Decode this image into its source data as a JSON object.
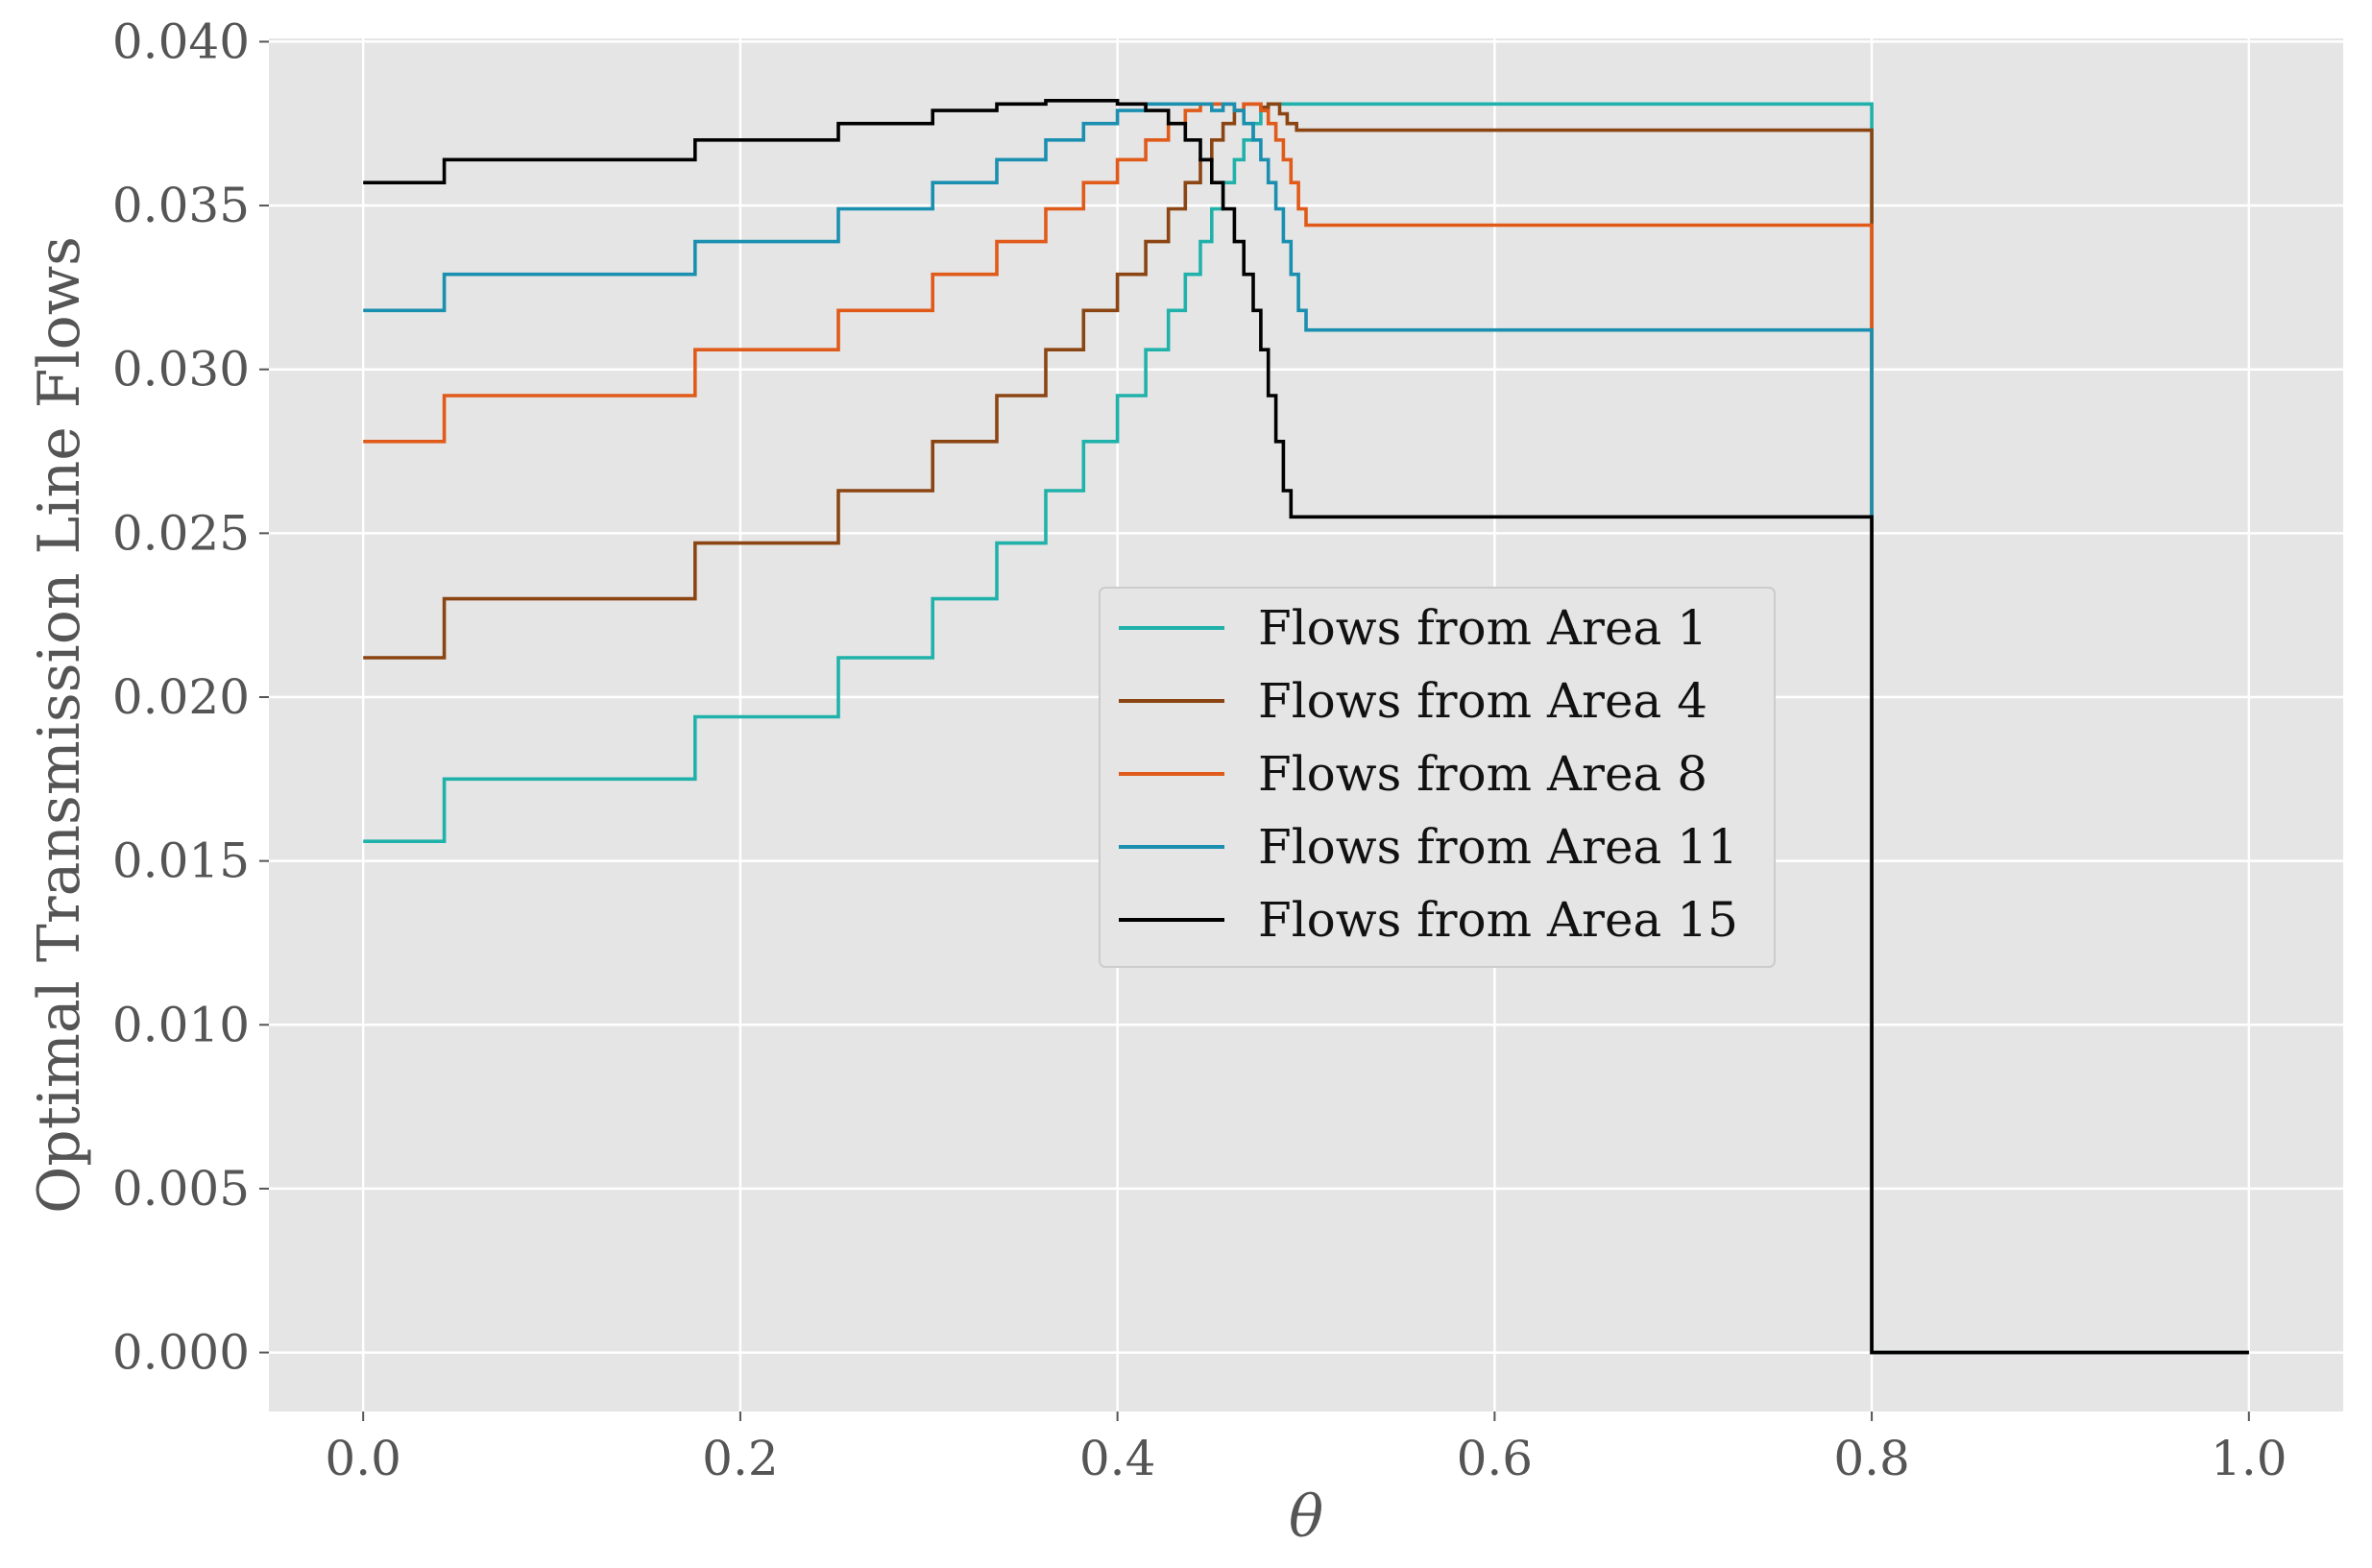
{
  "chart_data": {
    "type": "line",
    "step": true,
    "title": "",
    "xlabel": "θ",
    "ylabel": "Optimal Transmission Line Flows",
    "xlim": [
      -0.05,
      1.05
    ],
    "ylim": [
      -0.0018,
      0.0401
    ],
    "xticks": [
      0.0,
      0.2,
      0.4,
      0.6,
      0.8,
      1.0
    ],
    "xtick_labels": [
      "0.0",
      "0.2",
      "0.4",
      "0.6",
      "0.8",
      "1.0"
    ],
    "yticks": [
      0.0,
      0.005,
      0.01,
      0.015,
      0.02,
      0.025,
      0.03,
      0.035,
      0.04
    ],
    "ytick_labels": [
      "0.000",
      "0.005",
      "0.010",
      "0.015",
      "0.020",
      "0.025",
      "0.030",
      "0.035",
      "0.040"
    ],
    "grid": true,
    "legend_position": "center",
    "series": [
      {
        "name": "Flows from Area 1",
        "color": "#20b2aa",
        "points": [
          [
            0.0,
            0.0156
          ],
          [
            0.043,
            0.0156
          ],
          [
            0.043,
            0.0175
          ],
          [
            0.176,
            0.0175
          ],
          [
            0.176,
            0.0194
          ],
          [
            0.252,
            0.0194
          ],
          [
            0.252,
            0.0212
          ],
          [
            0.302,
            0.0212
          ],
          [
            0.302,
            0.023
          ],
          [
            0.336,
            0.023
          ],
          [
            0.336,
            0.0247
          ],
          [
            0.362,
            0.0247
          ],
          [
            0.362,
            0.0263
          ],
          [
            0.382,
            0.0263
          ],
          [
            0.382,
            0.0278
          ],
          [
            0.4,
            0.0278
          ],
          [
            0.4,
            0.0292
          ],
          [
            0.415,
            0.0292
          ],
          [
            0.415,
            0.0306
          ],
          [
            0.427,
            0.0306
          ],
          [
            0.427,
            0.0318
          ],
          [
            0.436,
            0.0318
          ],
          [
            0.436,
            0.0329
          ],
          [
            0.444,
            0.0329
          ],
          [
            0.444,
            0.0339
          ],
          [
            0.45,
            0.0339
          ],
          [
            0.45,
            0.0349
          ],
          [
            0.456,
            0.0349
          ],
          [
            0.456,
            0.0357
          ],
          [
            0.462,
            0.0357
          ],
          [
            0.462,
            0.0364
          ],
          [
            0.467,
            0.0364
          ],
          [
            0.467,
            0.037
          ],
          [
            0.472,
            0.037
          ],
          [
            0.472,
            0.0375
          ],
          [
            0.476,
            0.0375
          ],
          [
            0.476,
            0.0379
          ],
          [
            0.48,
            0.0379
          ],
          [
            0.48,
            0.0381
          ],
          [
            0.8,
            0.0381
          ],
          [
            0.8,
            0.0
          ],
          [
            1.0,
            0.0
          ]
        ]
      },
      {
        "name": "Flows from Area 4",
        "color": "#8b4513",
        "points": [
          [
            0.0,
            0.0212
          ],
          [
            0.043,
            0.0212
          ],
          [
            0.043,
            0.023
          ],
          [
            0.176,
            0.023
          ],
          [
            0.176,
            0.0247
          ],
          [
            0.252,
            0.0247
          ],
          [
            0.252,
            0.0263
          ],
          [
            0.302,
            0.0263
          ],
          [
            0.302,
            0.0278
          ],
          [
            0.336,
            0.0278
          ],
          [
            0.336,
            0.0292
          ],
          [
            0.362,
            0.0292
          ],
          [
            0.362,
            0.0306
          ],
          [
            0.382,
            0.0306
          ],
          [
            0.382,
            0.0318
          ],
          [
            0.4,
            0.0318
          ],
          [
            0.4,
            0.0329
          ],
          [
            0.415,
            0.0329
          ],
          [
            0.415,
            0.0339
          ],
          [
            0.427,
            0.0339
          ],
          [
            0.427,
            0.0349
          ],
          [
            0.436,
            0.0349
          ],
          [
            0.436,
            0.0357
          ],
          [
            0.444,
            0.0357
          ],
          [
            0.444,
            0.0364
          ],
          [
            0.45,
            0.0364
          ],
          [
            0.45,
            0.037
          ],
          [
            0.456,
            0.037
          ],
          [
            0.456,
            0.0375
          ],
          [
            0.462,
            0.0375
          ],
          [
            0.462,
            0.0379
          ],
          [
            0.467,
            0.0379
          ],
          [
            0.467,
            0.0381
          ],
          [
            0.476,
            0.0381
          ],
          [
            0.476,
            0.038
          ],
          [
            0.48,
            0.038
          ],
          [
            0.48,
            0.0381
          ],
          [
            0.486,
            0.0381
          ],
          [
            0.486,
            0.0378
          ],
          [
            0.49,
            0.0378
          ],
          [
            0.49,
            0.0375
          ],
          [
            0.495,
            0.0375
          ],
          [
            0.495,
            0.0373
          ],
          [
            0.8,
            0.0373
          ],
          [
            0.8,
            0.0
          ],
          [
            1.0,
            0.0
          ]
        ]
      },
      {
        "name": "Flows from Area 8",
        "color": "#e05a1a",
        "points": [
          [
            0.0,
            0.0278
          ],
          [
            0.043,
            0.0278
          ],
          [
            0.043,
            0.0292
          ],
          [
            0.176,
            0.0292
          ],
          [
            0.176,
            0.0306
          ],
          [
            0.252,
            0.0306
          ],
          [
            0.252,
            0.0318
          ],
          [
            0.302,
            0.0318
          ],
          [
            0.302,
            0.0329
          ],
          [
            0.336,
            0.0329
          ],
          [
            0.336,
            0.0339
          ],
          [
            0.362,
            0.0339
          ],
          [
            0.362,
            0.0349
          ],
          [
            0.382,
            0.0349
          ],
          [
            0.382,
            0.0357
          ],
          [
            0.4,
            0.0357
          ],
          [
            0.4,
            0.0364
          ],
          [
            0.415,
            0.0364
          ],
          [
            0.415,
            0.037
          ],
          [
            0.427,
            0.037
          ],
          [
            0.427,
            0.0375
          ],
          [
            0.436,
            0.0375
          ],
          [
            0.436,
            0.0379
          ],
          [
            0.444,
            0.0379
          ],
          [
            0.444,
            0.0381
          ],
          [
            0.462,
            0.0381
          ],
          [
            0.462,
            0.0379
          ],
          [
            0.467,
            0.0379
          ],
          [
            0.467,
            0.0381
          ],
          [
            0.476,
            0.0381
          ],
          [
            0.476,
            0.0379
          ],
          [
            0.48,
            0.0379
          ],
          [
            0.48,
            0.0375
          ],
          [
            0.484,
            0.0375
          ],
          [
            0.484,
            0.037
          ],
          [
            0.488,
            0.037
          ],
          [
            0.488,
            0.0364
          ],
          [
            0.492,
            0.0364
          ],
          [
            0.492,
            0.0357
          ],
          [
            0.496,
            0.0357
          ],
          [
            0.496,
            0.0349
          ],
          [
            0.5,
            0.0349
          ],
          [
            0.5,
            0.0344
          ],
          [
            0.8,
            0.0344
          ],
          [
            0.8,
            0.0
          ],
          [
            1.0,
            0.0
          ]
        ]
      },
      {
        "name": "Flows from Area 11",
        "color": "#1a8fb0",
        "points": [
          [
            0.0,
            0.0318
          ],
          [
            0.043,
            0.0318
          ],
          [
            0.043,
            0.0329
          ],
          [
            0.176,
            0.0329
          ],
          [
            0.176,
            0.0339
          ],
          [
            0.252,
            0.0339
          ],
          [
            0.252,
            0.0349
          ],
          [
            0.302,
            0.0349
          ],
          [
            0.302,
            0.0357
          ],
          [
            0.336,
            0.0357
          ],
          [
            0.336,
            0.0364
          ],
          [
            0.362,
            0.0364
          ],
          [
            0.362,
            0.037
          ],
          [
            0.382,
            0.037
          ],
          [
            0.382,
            0.0375
          ],
          [
            0.4,
            0.0375
          ],
          [
            0.4,
            0.0379
          ],
          [
            0.415,
            0.0379
          ],
          [
            0.415,
            0.0381
          ],
          [
            0.45,
            0.0381
          ],
          [
            0.45,
            0.0379
          ],
          [
            0.456,
            0.0379
          ],
          [
            0.456,
            0.0381
          ],
          [
            0.462,
            0.0381
          ],
          [
            0.462,
            0.0379
          ],
          [
            0.467,
            0.0379
          ],
          [
            0.467,
            0.0375
          ],
          [
            0.472,
            0.0375
          ],
          [
            0.472,
            0.037
          ],
          [
            0.476,
            0.037
          ],
          [
            0.476,
            0.0364
          ],
          [
            0.48,
            0.0364
          ],
          [
            0.48,
            0.0357
          ],
          [
            0.484,
            0.0357
          ],
          [
            0.484,
            0.0349
          ],
          [
            0.488,
            0.0349
          ],
          [
            0.488,
            0.0339
          ],
          [
            0.492,
            0.0339
          ],
          [
            0.492,
            0.0329
          ],
          [
            0.496,
            0.0329
          ],
          [
            0.496,
            0.0318
          ],
          [
            0.5,
            0.0318
          ],
          [
            0.5,
            0.0312
          ],
          [
            0.8,
            0.0312
          ],
          [
            0.8,
            0.0
          ],
          [
            1.0,
            0.0
          ]
        ]
      },
      {
        "name": "Flows from Area 15",
        "color": "#000000",
        "points": [
          [
            0.0,
            0.0357
          ],
          [
            0.043,
            0.0357
          ],
          [
            0.043,
            0.0364
          ],
          [
            0.176,
            0.0364
          ],
          [
            0.176,
            0.037
          ],
          [
            0.252,
            0.037
          ],
          [
            0.252,
            0.0375
          ],
          [
            0.302,
            0.0375
          ],
          [
            0.302,
            0.0379
          ],
          [
            0.336,
            0.0379
          ],
          [
            0.336,
            0.0381
          ],
          [
            0.362,
            0.0381
          ],
          [
            0.362,
            0.0382
          ],
          [
            0.4,
            0.0382
          ],
          [
            0.4,
            0.0381
          ],
          [
            0.415,
            0.0381
          ],
          [
            0.415,
            0.0379
          ],
          [
            0.427,
            0.0379
          ],
          [
            0.427,
            0.0375
          ],
          [
            0.436,
            0.0375
          ],
          [
            0.436,
            0.037
          ],
          [
            0.444,
            0.037
          ],
          [
            0.444,
            0.0364
          ],
          [
            0.45,
            0.0364
          ],
          [
            0.45,
            0.0357
          ],
          [
            0.456,
            0.0357
          ],
          [
            0.456,
            0.0349
          ],
          [
            0.462,
            0.0349
          ],
          [
            0.462,
            0.0339
          ],
          [
            0.467,
            0.0339
          ],
          [
            0.467,
            0.0329
          ],
          [
            0.472,
            0.0329
          ],
          [
            0.472,
            0.0318
          ],
          [
            0.476,
            0.0318
          ],
          [
            0.476,
            0.0306
          ],
          [
            0.48,
            0.0306
          ],
          [
            0.48,
            0.0292
          ],
          [
            0.484,
            0.0292
          ],
          [
            0.484,
            0.0278
          ],
          [
            0.488,
            0.0278
          ],
          [
            0.488,
            0.0263
          ],
          [
            0.492,
            0.0263
          ],
          [
            0.492,
            0.0255
          ],
          [
            0.8,
            0.0255
          ],
          [
            0.8,
            0.0
          ],
          [
            1.0,
            0.0
          ]
        ]
      }
    ]
  }
}
